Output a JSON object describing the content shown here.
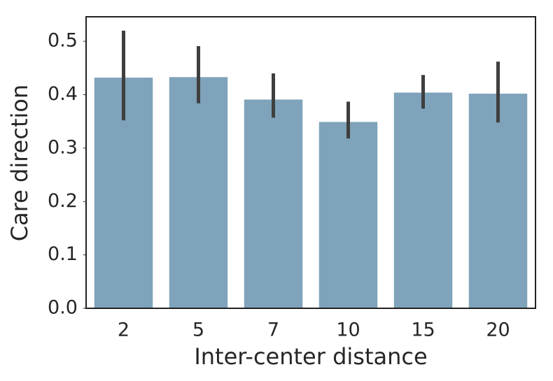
{
  "chart_data": {
    "type": "bar",
    "x_label": "Inter-center distance",
    "y_label": "Care direction",
    "categories": [
      "2",
      "5",
      "7",
      "10",
      "15",
      "20"
    ],
    "values": [
      0.432,
      0.433,
      0.391,
      0.349,
      0.404,
      0.402
    ],
    "ci_low": [
      0.352,
      0.384,
      0.357,
      0.318,
      0.374,
      0.348
    ],
    "ci_high": [
      0.52,
      0.491,
      0.44,
      0.387,
      0.437,
      0.462
    ],
    "color": "#7fa3ba",
    "error_color": "#3f3f3f",
    "ylim": [
      0,
      0.546
    ],
    "yticks": [
      {
        "value": 0,
        "label": "0.0"
      },
      0.1,
      0.2,
      0.3,
      0.4,
      0.5
    ],
    "grid": false
  }
}
